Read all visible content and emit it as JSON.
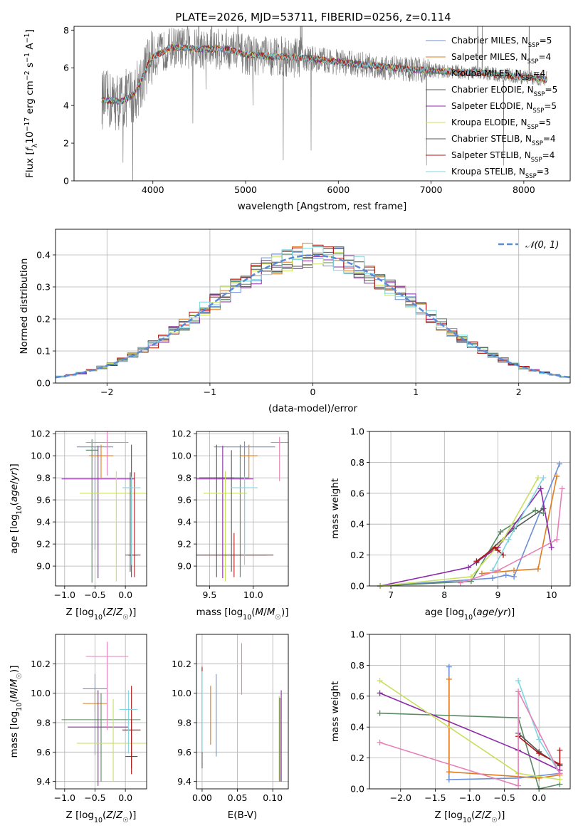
{
  "figure": {
    "title": "PLATE=2026, MJD=53711, FIBERID=0256, z=0.114"
  },
  "legend": {
    "models": [
      {
        "label": "Chabrier MILES, N",
        "sub": "SSP",
        "suffix": "=5",
        "color": "#6b8fd6"
      },
      {
        "label": "Salpeter MILES, N",
        "sub": "SSP",
        "suffix": "=4",
        "color": "#e07b1f"
      },
      {
        "label": "Kroupa MILES, N",
        "sub": "SSP",
        "suffix": "=4",
        "color": "#5a8a64"
      },
      {
        "label": "Chabrier ELODIE, N",
        "sub": "SSP",
        "suffix": "=5",
        "color": "#555555"
      },
      {
        "label": "Salpeter ELODIE, N",
        "sub": "SSP",
        "suffix": "=5",
        "color": "#8c2aa8"
      },
      {
        "label": "Kroupa ELODIE, N",
        "sub": "SSP",
        "suffix": "=5",
        "color": "#c8e060"
      },
      {
        "label": "Chabrier STELIB, N",
        "sub": "SSP",
        "suffix": "=4",
        "color": "#555555"
      },
      {
        "label": "Salpeter STELIB, N",
        "sub": "SSP",
        "suffix": "=4",
        "color": "#b01515"
      },
      {
        "label": "Kroupa STELIB, N",
        "sub": "SSP",
        "suffix": "=3",
        "color": "#7fd6e0"
      }
    ],
    "normal_label": "𝒩(0, 1)"
  },
  "chart_data": [
    {
      "id": "spectrum",
      "type": "line",
      "xlabel": "wavelength [Angstrom, rest frame]",
      "ylabel": "Flux [f_λ 10^-17 erg cm^-2 s^-1 A^-1]",
      "xlim": [
        3150,
        8500
      ],
      "ylim": [
        0,
        8.2
      ],
      "xticks": [
        4000,
        5000,
        6000,
        7000,
        8000
      ],
      "yticks": [
        0,
        2,
        4,
        6,
        8
      ],
      "continuum": [
        [
          3450,
          4.3
        ],
        [
          3650,
          4.2
        ],
        [
          3800,
          4.6
        ],
        [
          3900,
          5.6
        ],
        [
          3980,
          6.5
        ],
        [
          4200,
          7.1
        ],
        [
          4500,
          7.0
        ],
        [
          4800,
          7.0
        ],
        [
          5000,
          6.7
        ],
        [
          5300,
          6.6
        ],
        [
          5700,
          6.5
        ],
        [
          6000,
          6.3
        ],
        [
          6400,
          6.1
        ],
        [
          6800,
          5.9
        ],
        [
          7200,
          5.8
        ],
        [
          7600,
          5.7
        ],
        [
          8000,
          5.5
        ],
        [
          8250,
          5.4
        ]
      ]
    },
    {
      "id": "residuals",
      "type": "line",
      "xlabel": "(data-model)/error",
      "ylabel": "Normed distribution",
      "xlim": [
        -2.5,
        2.5
      ],
      "ylim": [
        0,
        0.48
      ],
      "xticks": [
        -2,
        -1,
        0,
        1,
        2
      ],
      "yticks": [
        0.0,
        0.1,
        0.2,
        0.3,
        0.4
      ],
      "normal": {
        "mean": 0,
        "sigma": 1
      }
    },
    {
      "id": "z_age",
      "type": "scatter",
      "xlabel": "Z [log10(Z/Z☉)]",
      "ylabel": "age  [log10(age/yr)]",
      "xlim": [
        -1.15,
        0.35
      ],
      "ylim": [
        8.82,
        10.22
      ],
      "xticks": [
        -1.0,
        -0.5,
        0.0
      ],
      "yticks": [
        9.0,
        9.2,
        9.4,
        9.6,
        9.8,
        10.0,
        10.2
      ],
      "points": [
        {
          "x": -0.5,
          "y": 10.08,
          "xerr": 0.3,
          "yerr": [
            0.93,
            0.0
          ],
          "color": "#6b8fd6"
        },
        {
          "x": -0.4,
          "y": 10.0,
          "xerr": 0.2,
          "yerr": [
            0.2,
            0.1
          ],
          "color": "#e07b1f"
        },
        {
          "x": -0.55,
          "y": 10.05,
          "xerr": 0.1,
          "yerr": [
            1.2,
            0.1
          ],
          "color": "#5a8a64"
        },
        {
          "x": 0.1,
          "y": 9.1,
          "xerr": 0.1,
          "yerr": [
            0.2,
            1.0
          ],
          "color": "#555555"
        },
        {
          "x": -0.45,
          "y": 9.79,
          "xerr": 0.6,
          "yerr": [
            0.9,
            0.3
          ],
          "color": "#8c2aa8"
        },
        {
          "x": -0.15,
          "y": 9.66,
          "xerr": 0.6,
          "yerr": [
            0.8,
            0.2
          ],
          "color": "#c8e060"
        },
        {
          "x": 0.08,
          "y": 9.1,
          "xerr": 0.03,
          "yerr": [
            0.15,
            0.75
          ],
          "color": "#555555"
        },
        {
          "x": 0.15,
          "y": 9.1,
          "xerr": 0.1,
          "yerr": [
            0.2,
            0.75
          ],
          "color": "#b01515"
        },
        {
          "x": 0.1,
          "y": 9.71,
          "xerr": 0.15,
          "yerr": [
            0.7,
            0.1
          ],
          "color": "#7fd6e0"
        },
        {
          "x": -0.3,
          "y": 10.12,
          "xerr": 0.35,
          "yerr": [
            0.3,
            0.1
          ],
          "color": "#e680b8"
        }
      ]
    },
    {
      "id": "mass_age",
      "type": "scatter",
      "xlabel": "mass [log10(M/M☉)]",
      "ylabel": "",
      "xlim": [
        9.35,
        10.4
      ],
      "ylim": [
        8.82,
        10.22
      ],
      "xticks": [
        9.5,
        10.0
      ],
      "yticks": [
        9.0,
        9.2,
        9.4,
        9.6,
        9.8,
        10.0,
        10.2
      ],
      "points": [
        {
          "x": 9.9,
          "y": 10.08,
          "xerr": 0.35,
          "yerr": [
            0.95,
            0.05
          ],
          "color": "#6b8fd6"
        },
        {
          "x": 9.95,
          "y": 10.0,
          "xerr": 0.1,
          "yerr": [
            0.2,
            0.1
          ],
          "color": "#e07b1f"
        },
        {
          "x": 9.85,
          "y": 9.8,
          "xerr": 0.1,
          "yerr": [
            0.9,
            0.3
          ],
          "color": "#5a8a64"
        },
        {
          "x": 9.58,
          "y": 9.8,
          "xerr": 0.2,
          "yerr": [
            0.9,
            0.3
          ],
          "color": "#555555"
        },
        {
          "x": 9.65,
          "y": 9.79,
          "xerr": 0.35,
          "yerr": [
            0.9,
            0.3
          ],
          "color": "#8c2aa8"
        },
        {
          "x": 9.68,
          "y": 9.66,
          "xerr": 0.25,
          "yerr": [
            0.8,
            0.2
          ],
          "color": "#c8e060"
        },
        {
          "x": 9.75,
          "y": 9.1,
          "xerr": 0.4,
          "yerr": [
            0.15,
            0.95
          ],
          "color": "#555555"
        },
        {
          "x": 9.78,
          "y": 9.1,
          "xerr": 0.45,
          "yerr": [
            0.2,
            0.2
          ],
          "color": "#b01515"
        },
        {
          "x": 9.9,
          "y": 9.71,
          "xerr": 0.15,
          "yerr": [
            0.7,
            0.1
          ],
          "color": "#7fd6e0"
        },
        {
          "x": 10.3,
          "y": 10.12,
          "xerr": 0.1,
          "yerr": [
            0.35,
            0.05
          ],
          "color": "#e680b8"
        }
      ]
    },
    {
      "id": "age_weight",
      "type": "line",
      "xlabel": "age  [log10(age/yr)]",
      "ylabel": "mass weight",
      "xlim": [
        6.6,
        10.35
      ],
      "ylim": [
        0,
        1.0
      ],
      "xticks": [
        7,
        8,
        9,
        10
      ],
      "yticks": [
        0.0,
        0.2,
        0.4,
        0.6,
        0.8,
        1.0
      ],
      "series": [
        {
          "color": "#6b8fd6",
          "points": [
            [
              6.8,
              0.0
            ],
            [
              8.9,
              0.05
            ],
            [
              9.15,
              0.07
            ],
            [
              9.3,
              0.06
            ],
            [
              10.15,
              0.79
            ]
          ]
        },
        {
          "color": "#e07b1f",
          "points": [
            [
              8.7,
              0.08
            ],
            [
              9.3,
              0.1
            ],
            [
              9.75,
              0.11
            ],
            [
              10.1,
              0.71
            ]
          ]
        },
        {
          "color": "#5a8a64",
          "points": [
            [
              6.8,
              0.0
            ],
            [
              8.5,
              0.03
            ],
            [
              9.05,
              0.35
            ],
            [
              9.7,
              0.49
            ],
            [
              9.85,
              0.47
            ]
          ]
        },
        {
          "color": "#555555",
          "points": [
            [
              8.6,
              0.15
            ],
            [
              9.3,
              0.37
            ],
            [
              9.85,
              0.5
            ]
          ]
        },
        {
          "color": "#8c2aa8",
          "points": [
            [
              6.8,
              0.0
            ],
            [
              8.45,
              0.12
            ],
            [
              9.0,
              0.25
            ],
            [
              9.8,
              0.63
            ],
            [
              10.0,
              0.25
            ]
          ]
        },
        {
          "color": "#c8e060",
          "points": [
            [
              6.8,
              0.0
            ],
            [
              8.5,
              0.06
            ],
            [
              9.1,
              0.3
            ],
            [
              9.75,
              0.7
            ]
          ]
        },
        {
          "color": "#b01515",
          "points": [
            [
              8.6,
              0.16
            ],
            [
              8.95,
              0.25
            ],
            [
              9.0,
              0.23
            ],
            [
              9.1,
              0.2
            ]
          ]
        },
        {
          "color": "#7fd6e0",
          "points": [
            [
              8.9,
              0.1
            ],
            [
              9.2,
              0.3
            ],
            [
              9.85,
              0.7
            ]
          ]
        },
        {
          "color": "#e680b8",
          "points": [
            [
              8.3,
              0.02
            ],
            [
              9.0,
              0.1
            ],
            [
              10.1,
              0.3
            ],
            [
              10.2,
              0.63
            ]
          ]
        }
      ]
    },
    {
      "id": "z_mass",
      "type": "scatter",
      "xlabel": "Z [log10(Z/Z☉)]",
      "ylabel": "mass [log10(M/M☉)]",
      "xlim": [
        -1.15,
        0.35
      ],
      "ylim": [
        9.35,
        10.4
      ],
      "xticks": [
        -1.0,
        -0.5,
        0.0
      ],
      "yticks": [
        9.4,
        9.6,
        9.8,
        10.0,
        10.2
      ],
      "points": [
        {
          "x": -0.5,
          "y": 10.03,
          "xerr": 0.2,
          "yerr": [
            0.45,
            0.1
          ],
          "color": "#6b8fd6"
        },
        {
          "x": -0.5,
          "y": 9.93,
          "xerr": 0.2,
          "yerr": [
            0.05,
            0.08
          ],
          "color": "#e07b1f"
        },
        {
          "x": -0.4,
          "y": 9.82,
          "xerr": 0.65,
          "yerr": [
            0.42,
            0.18
          ],
          "color": "#5a8a64"
        },
        {
          "x": 0.1,
          "y": 9.57,
          "xerr": 0.1,
          "yerr": [
            0.08,
            0.25
          ],
          "color": "#555555"
        },
        {
          "x": -0.45,
          "y": 9.77,
          "xerr": 0.5,
          "yerr": [
            0.4,
            0.25
          ],
          "color": "#8c2aa8"
        },
        {
          "x": -0.2,
          "y": 9.66,
          "xerr": 0.6,
          "yerr": [
            0.26,
            0.3
          ],
          "color": "#c8e060"
        },
        {
          "x": 0.1,
          "y": 9.75,
          "xerr": 0.15,
          "yerr": [
            0.3,
            0.3
          ],
          "color": "#b01515"
        },
        {
          "x": 0.05,
          "y": 9.89,
          "xerr": 0.15,
          "yerr": [
            0.3,
            0.13
          ],
          "color": "#7fd6e0"
        },
        {
          "x": -0.3,
          "y": 10.25,
          "xerr": 0.35,
          "yerr": [
            0.5,
            0.1
          ],
          "color": "#e680b8"
        }
      ]
    },
    {
      "id": "ebv_mass",
      "type": "scatter",
      "xlabel": "E(B-V)",
      "ylabel": "",
      "xlim": [
        -0.008,
        0.122
      ],
      "ylim": [
        9.35,
        10.4
      ],
      "xticks": [
        0.0,
        0.05,
        0.1
      ],
      "yticks": [
        9.4,
        9.6,
        9.8,
        10.0,
        10.2
      ],
      "points": [
        {
          "x": 0.02,
          "y": 9.85,
          "yerr": [
            0.28,
            0.28
          ],
          "color": "#6b8fd6"
        },
        {
          "x": 0.012,
          "y": 9.85,
          "yerr": [
            0.2,
            0.2
          ],
          "color": "#e07b1f"
        },
        {
          "x": 0.0,
          "y": 9.72,
          "yerr": [
            0.23,
            0.45
          ],
          "color": "#555555"
        },
        {
          "x": 0.0,
          "y": 9.9,
          "yerr": [
            0.3,
            0.28
          ],
          "color": "#b01515"
        },
        {
          "x": 0.0,
          "y": 9.85,
          "yerr": [
            0.25,
            0.3
          ],
          "color": "#7fd6e0"
        },
        {
          "x": 0.056,
          "y": 10.17,
          "yerr": [
            0.18,
            0.17
          ],
          "color": "#e680b8"
        },
        {
          "x": 0.112,
          "y": 9.7,
          "yerr": [
            0.3,
            0.32
          ],
          "color": "#8c2aa8"
        },
        {
          "x": 0.109,
          "y": 9.68,
          "yerr": [
            0.28,
            0.3
          ],
          "color": "#c8e060"
        },
        {
          "x": 0.11,
          "y": 9.68,
          "yerr": [
            0.28,
            0.29
          ],
          "color": "#555555"
        }
      ]
    },
    {
      "id": "z_weight",
      "type": "line",
      "xlabel": "Z [log10(Z/Z☉)]",
      "ylabel": "mass weight",
      "xlim": [
        -2.45,
        0.45
      ],
      "ylim": [
        0,
        1.0
      ],
      "xticks": [
        -2.0,
        -1.5,
        -1.0,
        -0.5,
        0.0
      ],
      "yticks": [
        0.0,
        0.2,
        0.4,
        0.6,
        0.8,
        1.0
      ],
      "series": [
        {
          "color": "#6b8fd6",
          "points": [
            [
              -1.3,
              0.79
            ],
            [
              -1.3,
              0.06
            ],
            [
              -0.3,
              0.07
            ],
            [
              0.3,
              0.1
            ]
          ]
        },
        {
          "color": "#e07b1f",
          "points": [
            [
              -1.3,
              0.71
            ],
            [
              -1.3,
              0.11
            ],
            [
              0.0,
              0.07
            ],
            [
              0.3,
              0.09
            ]
          ]
        },
        {
          "color": "#5a8a64",
          "points": [
            [
              -2.3,
              0.49
            ],
            [
              -0.3,
              0.46
            ],
            [
              0.0,
              0.0
            ],
            [
              0.3,
              0.03
            ]
          ]
        },
        {
          "color": "#555555",
          "points": [
            [
              -0.3,
              0.36
            ],
            [
              0.0,
              0.24
            ],
            [
              0.3,
              0.15
            ]
          ]
        },
        {
          "color": "#8c2aa8",
          "points": [
            [
              -2.3,
              0.62
            ],
            [
              -0.3,
              0.25
            ],
            [
              0.3,
              0.12
            ]
          ]
        },
        {
          "color": "#c8e060",
          "points": [
            [
              -2.3,
              0.7
            ],
            [
              -0.3,
              0.1
            ],
            [
              0.3,
              0.06
            ]
          ]
        },
        {
          "color": "#b01515",
          "points": [
            [
              -0.3,
              0.34
            ],
            [
              0.0,
              0.23
            ],
            [
              0.3,
              0.16
            ],
            [
              0.3,
              0.25
            ]
          ]
        },
        {
          "color": "#7fd6e0",
          "points": [
            [
              -0.3,
              0.7
            ],
            [
              0.0,
              0.32
            ],
            [
              0.3,
              0.1
            ]
          ]
        },
        {
          "color": "#e680b8",
          "points": [
            [
              -2.3,
              0.3
            ],
            [
              -0.3,
              0.02
            ],
            [
              -0.3,
              0.63
            ],
            [
              0.3,
              0.1
            ]
          ]
        }
      ]
    }
  ]
}
